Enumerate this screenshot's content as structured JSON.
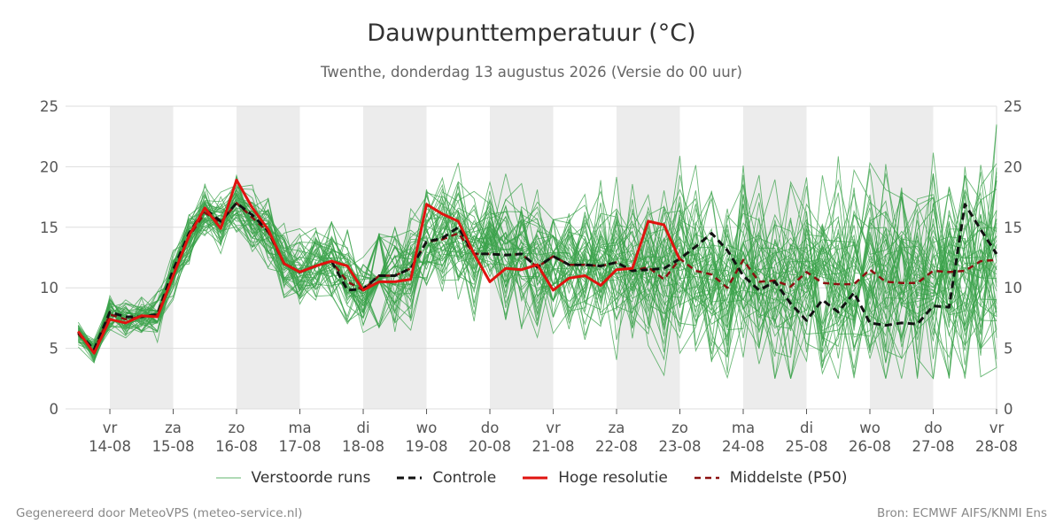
{
  "title": "Dauwpunttemperatuur (°C)",
  "subtitle": "Twenthe, donderdag 13 augustus 2026 (Versie do 00 uur)",
  "footer_left": "Gegenereerd door MeteoVPS (meteo-service.nl)",
  "footer_right": "Bron: ECMWF AIFS/KNMI Ens",
  "colors": {
    "ensemble": "#3aa14a",
    "control": "#111111",
    "highres": "#e0130f",
    "median": "#8b1010",
    "band": "#ececec",
    "grid": "#dddddd"
  },
  "chart_data": {
    "type": "line",
    "title": "Dauwpunttemperatuur (°C)",
    "ylim": [
      0,
      25
    ],
    "yticks": [
      0,
      5,
      10,
      15,
      20,
      25
    ],
    "xlim": [
      13.3,
      28.0
    ],
    "grid": true,
    "legend_position": "bottom",
    "weekend_bands": [
      [
        14,
        15
      ],
      [
        16,
        17
      ],
      [
        18,
        19
      ],
      [
        20,
        21
      ],
      [
        22,
        23
      ],
      [
        24,
        25
      ],
      [
        26,
        27
      ]
    ],
    "x_ticks": [
      {
        "x": 14,
        "day": "vr",
        "date": "14-08"
      },
      {
        "x": 15,
        "day": "za",
        "date": "15-08"
      },
      {
        "x": 16,
        "day": "zo",
        "date": "16-08"
      },
      {
        "x": 17,
        "day": "ma",
        "date": "17-08"
      },
      {
        "x": 18,
        "day": "di",
        "date": "18-08"
      },
      {
        "x": 19,
        "day": "wo",
        "date": "19-08"
      },
      {
        "x": 20,
        "day": "do",
        "date": "20-08"
      },
      {
        "x": 21,
        "day": "vr",
        "date": "21-08"
      },
      {
        "x": 22,
        "day": "za",
        "date": "22-08"
      },
      {
        "x": 23,
        "day": "zo",
        "date": "23-08"
      },
      {
        "x": 24,
        "day": "ma",
        "date": "24-08"
      },
      {
        "x": 25,
        "day": "di",
        "date": "25-08"
      },
      {
        "x": 26,
        "day": "wo",
        "date": "26-08"
      },
      {
        "x": 27,
        "day": "do",
        "date": "27-08"
      },
      {
        "x": 28,
        "day": "vr",
        "date": "28-08"
      }
    ],
    "legend": [
      {
        "key": "ensemble",
        "label": "Verstoorde runs"
      },
      {
        "key": "control",
        "label": "Controle"
      },
      {
        "key": "highres",
        "label": "Hoge resolutie"
      },
      {
        "key": "median",
        "label": "Middelste (P50)"
      }
    ],
    "series": [
      {
        "name": "Controle",
        "key": "control",
        "style": "dashed",
        "x": [
          13.5,
          13.75,
          14.0,
          14.25,
          14.5,
          14.75,
          15.0,
          15.25,
          15.5,
          15.75,
          16.0,
          16.25,
          16.5,
          16.75,
          17.0,
          17.25,
          17.5,
          17.75,
          18.0,
          18.25,
          18.5,
          18.75,
          19.0,
          19.25,
          19.5,
          19.75,
          20.0,
          20.25,
          20.5,
          20.75,
          21.0,
          21.25,
          21.5,
          21.75,
          22.0,
          22.25,
          22.5,
          22.75,
          23.0,
          23.25,
          23.5,
          23.75,
          24.0,
          24.25,
          24.5,
          24.75,
          25.0,
          25.25,
          25.5,
          25.75,
          26.0,
          26.25,
          26.5,
          26.75,
          27.0,
          27.25,
          27.5,
          27.75,
          28.0
        ],
        "values": [
          6.3,
          4.9,
          8.0,
          7.6,
          7.6,
          7.8,
          11.5,
          14.5,
          16.5,
          15.5,
          17.0,
          16.0,
          14.7,
          12.0,
          11.3,
          11.8,
          12.2,
          9.8,
          9.9,
          11.0,
          11.0,
          11.6,
          13.8,
          14.1,
          15.0,
          12.8,
          12.8,
          12.7,
          12.8,
          11.7,
          12.6,
          11.9,
          11.9,
          11.8,
          12.1,
          11.4,
          11.5,
          11.6,
          12.4,
          13.4,
          14.5,
          13.1,
          11.0,
          9.8,
          10.5,
          8.7,
          7.3,
          9.0,
          8.0,
          9.6,
          7.1,
          6.9,
          7.1,
          7.0,
          8.5,
          8.4,
          16.9,
          14.8,
          12.8
        ]
      },
      {
        "name": "Hoge resolutie",
        "key": "highres",
        "style": "solid",
        "x": [
          13.5,
          13.75,
          14.0,
          14.25,
          14.5,
          14.75,
          15.0,
          15.25,
          15.5,
          15.75,
          16.0,
          16.25,
          16.5,
          16.75,
          17.0,
          17.25,
          17.5,
          17.75,
          18.0,
          18.25,
          18.5,
          18.75,
          19.0,
          19.25,
          19.5,
          19.75,
          20.0,
          20.25,
          20.5,
          20.75,
          21.0,
          21.25,
          21.5,
          21.75,
          22.0,
          22.25,
          22.5,
          22.75,
          23.0
        ],
        "values": [
          6.4,
          4.6,
          7.4,
          7.1,
          7.7,
          7.6,
          11.0,
          14.3,
          16.6,
          14.9,
          18.9,
          16.6,
          14.8,
          12.0,
          11.3,
          11.8,
          12.2,
          11.8,
          9.8,
          10.5,
          10.5,
          10.7,
          16.9,
          16.1,
          15.5,
          12.8,
          10.5,
          11.6,
          11.5,
          11.9,
          9.8,
          10.8,
          11.0,
          10.2,
          11.5,
          11.6,
          15.5,
          15.2,
          12.3
        ]
      },
      {
        "name": "Middelste (P50)",
        "key": "median",
        "style": "dashed",
        "x": [
          13.5,
          13.75,
          14.0,
          14.25,
          14.5,
          14.75,
          15.0,
          15.25,
          15.5,
          15.75,
          16.0,
          16.25,
          16.5,
          16.75,
          17.0,
          17.25,
          17.5,
          17.75,
          18.0,
          18.25,
          18.5,
          18.75,
          19.0,
          19.25,
          19.5,
          19.75,
          20.0,
          20.25,
          20.5,
          20.75,
          21.0,
          21.25,
          21.5,
          21.75,
          22.0,
          22.25,
          22.5,
          22.75,
          23.0,
          23.25,
          23.5,
          23.75,
          24.0,
          24.25,
          24.5,
          24.75,
          25.0,
          25.25,
          25.5,
          25.75,
          26.0,
          26.25,
          26.5,
          26.75,
          27.0,
          27.25,
          27.5,
          27.75,
          28.0
        ],
        "values": [
          6.2,
          4.8,
          7.8,
          7.4,
          7.6,
          7.8,
          11.3,
          14.2,
          16.2,
          15.4,
          17.0,
          15.8,
          14.6,
          12.0,
          11.3,
          11.8,
          12.2,
          10.5,
          9.8,
          11.0,
          11.0,
          11.6,
          13.8,
          14.0,
          14.5,
          12.8,
          12.8,
          12.7,
          12.8,
          11.7,
          12.6,
          11.9,
          11.9,
          11.8,
          12.1,
          11.4,
          11.7,
          10.7,
          12.4,
          11.4,
          11.1,
          10.0,
          12.3,
          10.5,
          10.6,
          10.1,
          11.3,
          10.4,
          10.3,
          10.3,
          11.5,
          10.5,
          10.4,
          10.4,
          11.4,
          11.3,
          11.4,
          12.2,
          12.3
        ]
      }
    ]
  }
}
